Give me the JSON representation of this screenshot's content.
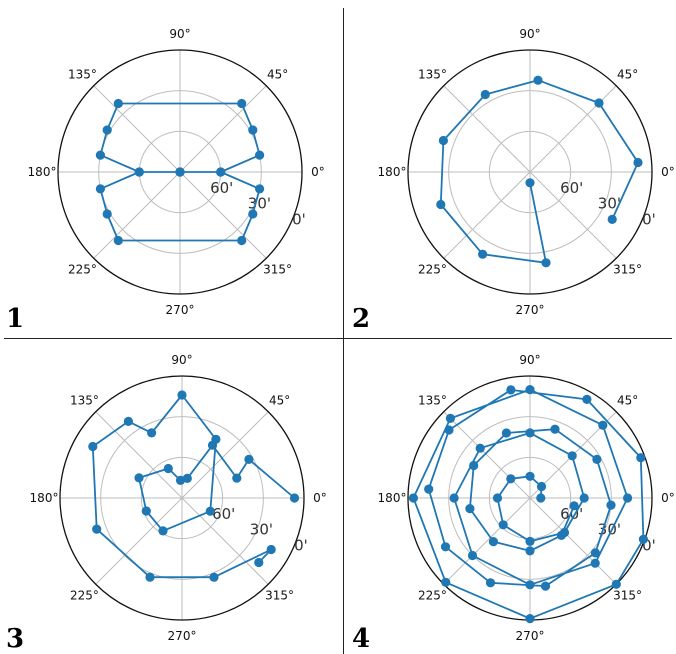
{
  "panels": [
    {
      "number": "1"
    },
    {
      "number": "2"
    },
    {
      "number": "3"
    },
    {
      "number": "4"
    }
  ],
  "colors": {
    "series": "#1f77b4",
    "grid": "#bdbdbd",
    "frame": "#111111"
  },
  "chart_data": [
    {
      "type": "line",
      "projection": "polar",
      "angle_tick_labels": [
        "0°",
        "45°",
        "90°",
        "135°",
        "180°",
        "225°",
        "270°",
        "315°"
      ],
      "radial_tick_labels": [
        "0'",
        "30'",
        "60'"
      ],
      "radial_ticks": [
        0,
        30,
        60
      ],
      "radial_axis": "inverted",
      "rlim": [
        0,
        90
      ],
      "grid": true,
      "series": [
        {
          "points": [
            {
              "theta": 0,
              "r": 90
            },
            {
              "theta": 0,
              "r": 60
            },
            {
              "theta": 12,
              "r": 30
            },
            {
              "theta": 30,
              "r": 28
            },
            {
              "theta": 48,
              "r": 22
            },
            {
              "theta": 132,
              "r": 22
            },
            {
              "theta": 150,
              "r": 28
            },
            {
              "theta": 168,
              "r": 30
            },
            {
              "theta": 180,
              "r": 60
            },
            {
              "theta": 180,
              "r": 90
            },
            {
              "theta": 180,
              "r": 60
            },
            {
              "theta": 192,
              "r": 30
            },
            {
              "theta": 210,
              "r": 28
            },
            {
              "theta": 228,
              "r": 22
            },
            {
              "theta": 312,
              "r": 22
            },
            {
              "theta": 330,
              "r": 28
            },
            {
              "theta": 348,
              "r": 30
            },
            {
              "theta": 0,
              "r": 60
            },
            {
              "theta": 0,
              "r": 90
            }
          ]
        }
      ]
    },
    {
      "type": "line",
      "projection": "polar",
      "angle_tick_labels": [
        "0°",
        "45°",
        "90°",
        "135°",
        "180°",
        "225°",
        "270°",
        "315°"
      ],
      "radial_tick_labels": [
        "0'",
        "30'",
        "60'"
      ],
      "radial_ticks": [
        0,
        30,
        60
      ],
      "radial_axis": "inverted",
      "rlim": [
        0,
        90
      ],
      "grid": true,
      "series": [
        {
          "points": [
            {
              "theta": 330,
              "r": 20
            },
            {
              "theta": 5,
              "r": 10
            },
            {
              "theta": 45,
              "r": 18
            },
            {
              "theta": 85,
              "r": 22
            },
            {
              "theta": 120,
              "r": 24
            },
            {
              "theta": 160,
              "r": 22
            },
            {
              "theta": 200,
              "r": 20
            },
            {
              "theta": 240,
              "r": 20
            },
            {
              "theta": 280,
              "r": 22
            },
            {
              "theta": 270,
              "r": 82
            }
          ]
        }
      ]
    },
    {
      "type": "line",
      "projection": "polar",
      "angle_tick_labels": [
        "0°",
        "45°",
        "90°",
        "135°",
        "180°",
        "225°",
        "270°",
        "315°"
      ],
      "radial_tick_labels": [
        "0'",
        "30'",
        "60'"
      ],
      "radial_ticks": [
        0,
        30,
        60
      ],
      "radial_axis": "inverted",
      "rlim": [
        0,
        90
      ],
      "grid": true,
      "series": [
        {
          "points": [
            {
              "theta": 0,
              "r": 7
            },
            {
              "theta": 30,
              "r": 33
            },
            {
              "theta": 20,
              "r": 47
            },
            {
              "theta": 60,
              "r": 45
            },
            {
              "theta": 75,
              "r": 75
            },
            {
              "theta": 95,
              "r": 77
            },
            {
              "theta": 115,
              "r": 66
            },
            {
              "theta": 155,
              "r": 55
            },
            {
              "theta": 200,
              "r": 62
            },
            {
              "theta": 240,
              "r": 62
            },
            {
              "theta": 335,
              "r": 67
            },
            {
              "theta": 60,
              "r": 40
            },
            {
              "theta": 90,
              "r": 14
            },
            {
              "theta": 115,
              "r": 37
            },
            {
              "theta": 125,
              "r": 21
            },
            {
              "theta": 150,
              "r": 14
            },
            {
              "theta": 200,
              "r": 23
            },
            {
              "theta": 248,
              "r": 27
            },
            {
              "theta": 292,
              "r": 27
            },
            {
              "theta": 330,
              "r": 14
            },
            {
              "theta": 320,
              "r": 16
            }
          ]
        }
      ]
    },
    {
      "type": "line",
      "projection": "polar",
      "angle_tick_labels": [
        "0°",
        "45°",
        "90°",
        "135°",
        "180°",
        "225°",
        "270°",
        "315°"
      ],
      "radial_tick_labels": [
        "0'",
        "30'",
        "60'"
      ],
      "radial_ticks": [
        0,
        30,
        60
      ],
      "radial_axis": "inverted",
      "rlim": [
        0,
        90
      ],
      "grid": true,
      "series": [
        {
          "points": [
            {
              "theta": 0,
              "r": 82
            },
            {
              "theta": 45,
              "r": 78
            },
            {
              "theta": 90,
              "r": 74
            },
            {
              "theta": 135,
              "r": 70
            },
            {
              "theta": 180,
              "r": 66
            },
            {
              "theta": 225,
              "r": 62
            },
            {
              "theta": 270,
              "r": 58
            },
            {
              "theta": 315,
              "r": 54
            },
            {
              "theta": 0,
              "r": 50
            },
            {
              "theta": 45,
              "r": 46
            },
            {
              "theta": 90,
              "r": 42
            },
            {
              "theta": 135,
              "r": 38
            },
            {
              "theta": 180,
              "r": 34
            },
            {
              "theta": 225,
              "r": 30
            },
            {
              "theta": 270,
              "r": 26
            },
            {
              "theta": 315,
              "r": 22
            },
            {
              "theta": 0,
              "r": 18
            },
            {
              "theta": 45,
              "r": 14
            },
            {
              "theta": 90,
              "r": 10
            },
            {
              "theta": 135,
              "r": 7
            },
            {
              "theta": 180,
              "r": 4
            },
            {
              "theta": 225,
              "r": 2
            },
            {
              "theta": 270,
              "r": 1
            },
            {
              "theta": 315,
              "r": 0
            },
            {
              "theta": 340,
              "r": 1
            },
            {
              "theta": 20,
              "r": 3
            },
            {
              "theta": 60,
              "r": 6
            },
            {
              "theta": 100,
              "r": 9
            },
            {
              "theta": 140,
              "r": 12
            },
            {
              "theta": 175,
              "r": 15
            },
            {
              "theta": 210,
              "r": 18
            },
            {
              "theta": 245,
              "r": 21
            },
            {
              "theta": 280,
              "r": 24
            },
            {
              "theta": 320,
              "r": 27
            },
            {
              "theta": 355,
              "r": 30
            },
            {
              "theta": 30,
              "r": 33
            },
            {
              "theta": 70,
              "r": 36
            },
            {
              "theta": 110,
              "r": 39
            },
            {
              "theta": 150,
              "r": 42
            },
            {
              "theta": 190,
              "r": 45
            },
            {
              "theta": 230,
              "r": 48
            },
            {
              "theta": 270,
              "r": 51
            },
            {
              "theta": 310,
              "r": 54
            },
            {
              "theta": 350,
              "r": 57
            }
          ]
        }
      ]
    }
  ]
}
